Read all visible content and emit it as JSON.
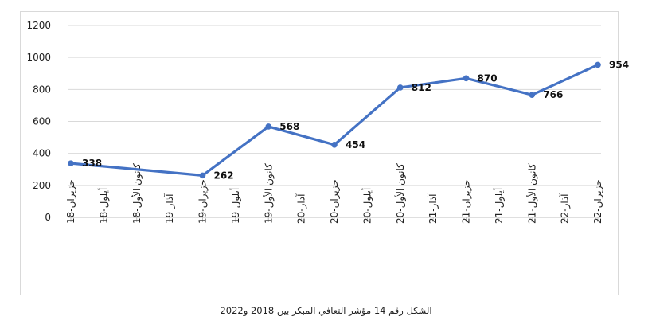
{
  "chart_data": {
    "type": "line",
    "categories": [
      "حزيران-18",
      "أيلول-18",
      "كانون الأول-18",
      "آذار-19",
      "حزيران-19",
      "أيلول-19",
      "كانون الأول-19",
      "آذار-20",
      "حزيران-20",
      "أيلول-20",
      "كانون الأول-20",
      "آذار-21",
      "حزيران-21",
      "أيلول-21",
      "كانون الأول-21",
      "آذار-22",
      "حزيران-22"
    ],
    "points": [
      {
        "x": "حزيران-18",
        "y": 338
      },
      {
        "x": "حزيران-19",
        "y": 262
      },
      {
        "x": "كانون الأول-19",
        "y": 568
      },
      {
        "x": "حزيران-20",
        "y": 454
      },
      {
        "x": "كانون الأول-20",
        "y": 812
      },
      {
        "x": "حزيران-21",
        "y": 870
      },
      {
        "x": "كانون الأول-21",
        "y": 766
      },
      {
        "x": "حزيران-22",
        "y": 954
      }
    ],
    "yticks": [
      0,
      200,
      400,
      600,
      800,
      1000,
      1200
    ],
    "ylim": [
      0,
      1200
    ],
    "grid": "horizontal",
    "line_color": "#4472C4",
    "data_labels": true
  },
  "caption": "الشكل رقم 14 مؤشر التعافي المبكر بين 2018 و2022"
}
